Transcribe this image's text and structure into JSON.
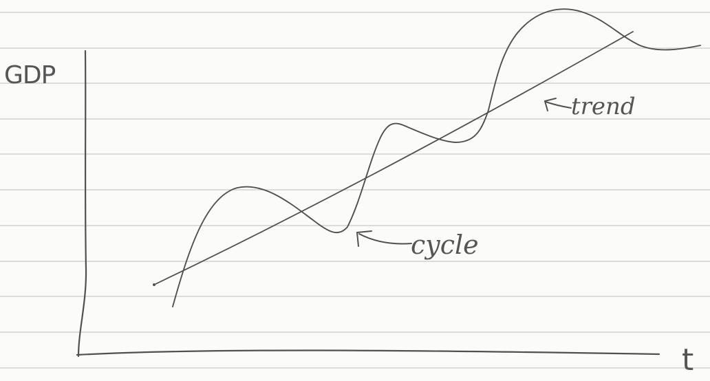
{
  "diagram": {
    "y_axis_label": "GDP",
    "x_axis_label": "t",
    "annotations": {
      "cycle": "cycle",
      "trend": "trend"
    },
    "colors": {
      "ink": "#505050",
      "paper": "#fbfbfa",
      "rule_lines": "#c9c9c9"
    }
  }
}
